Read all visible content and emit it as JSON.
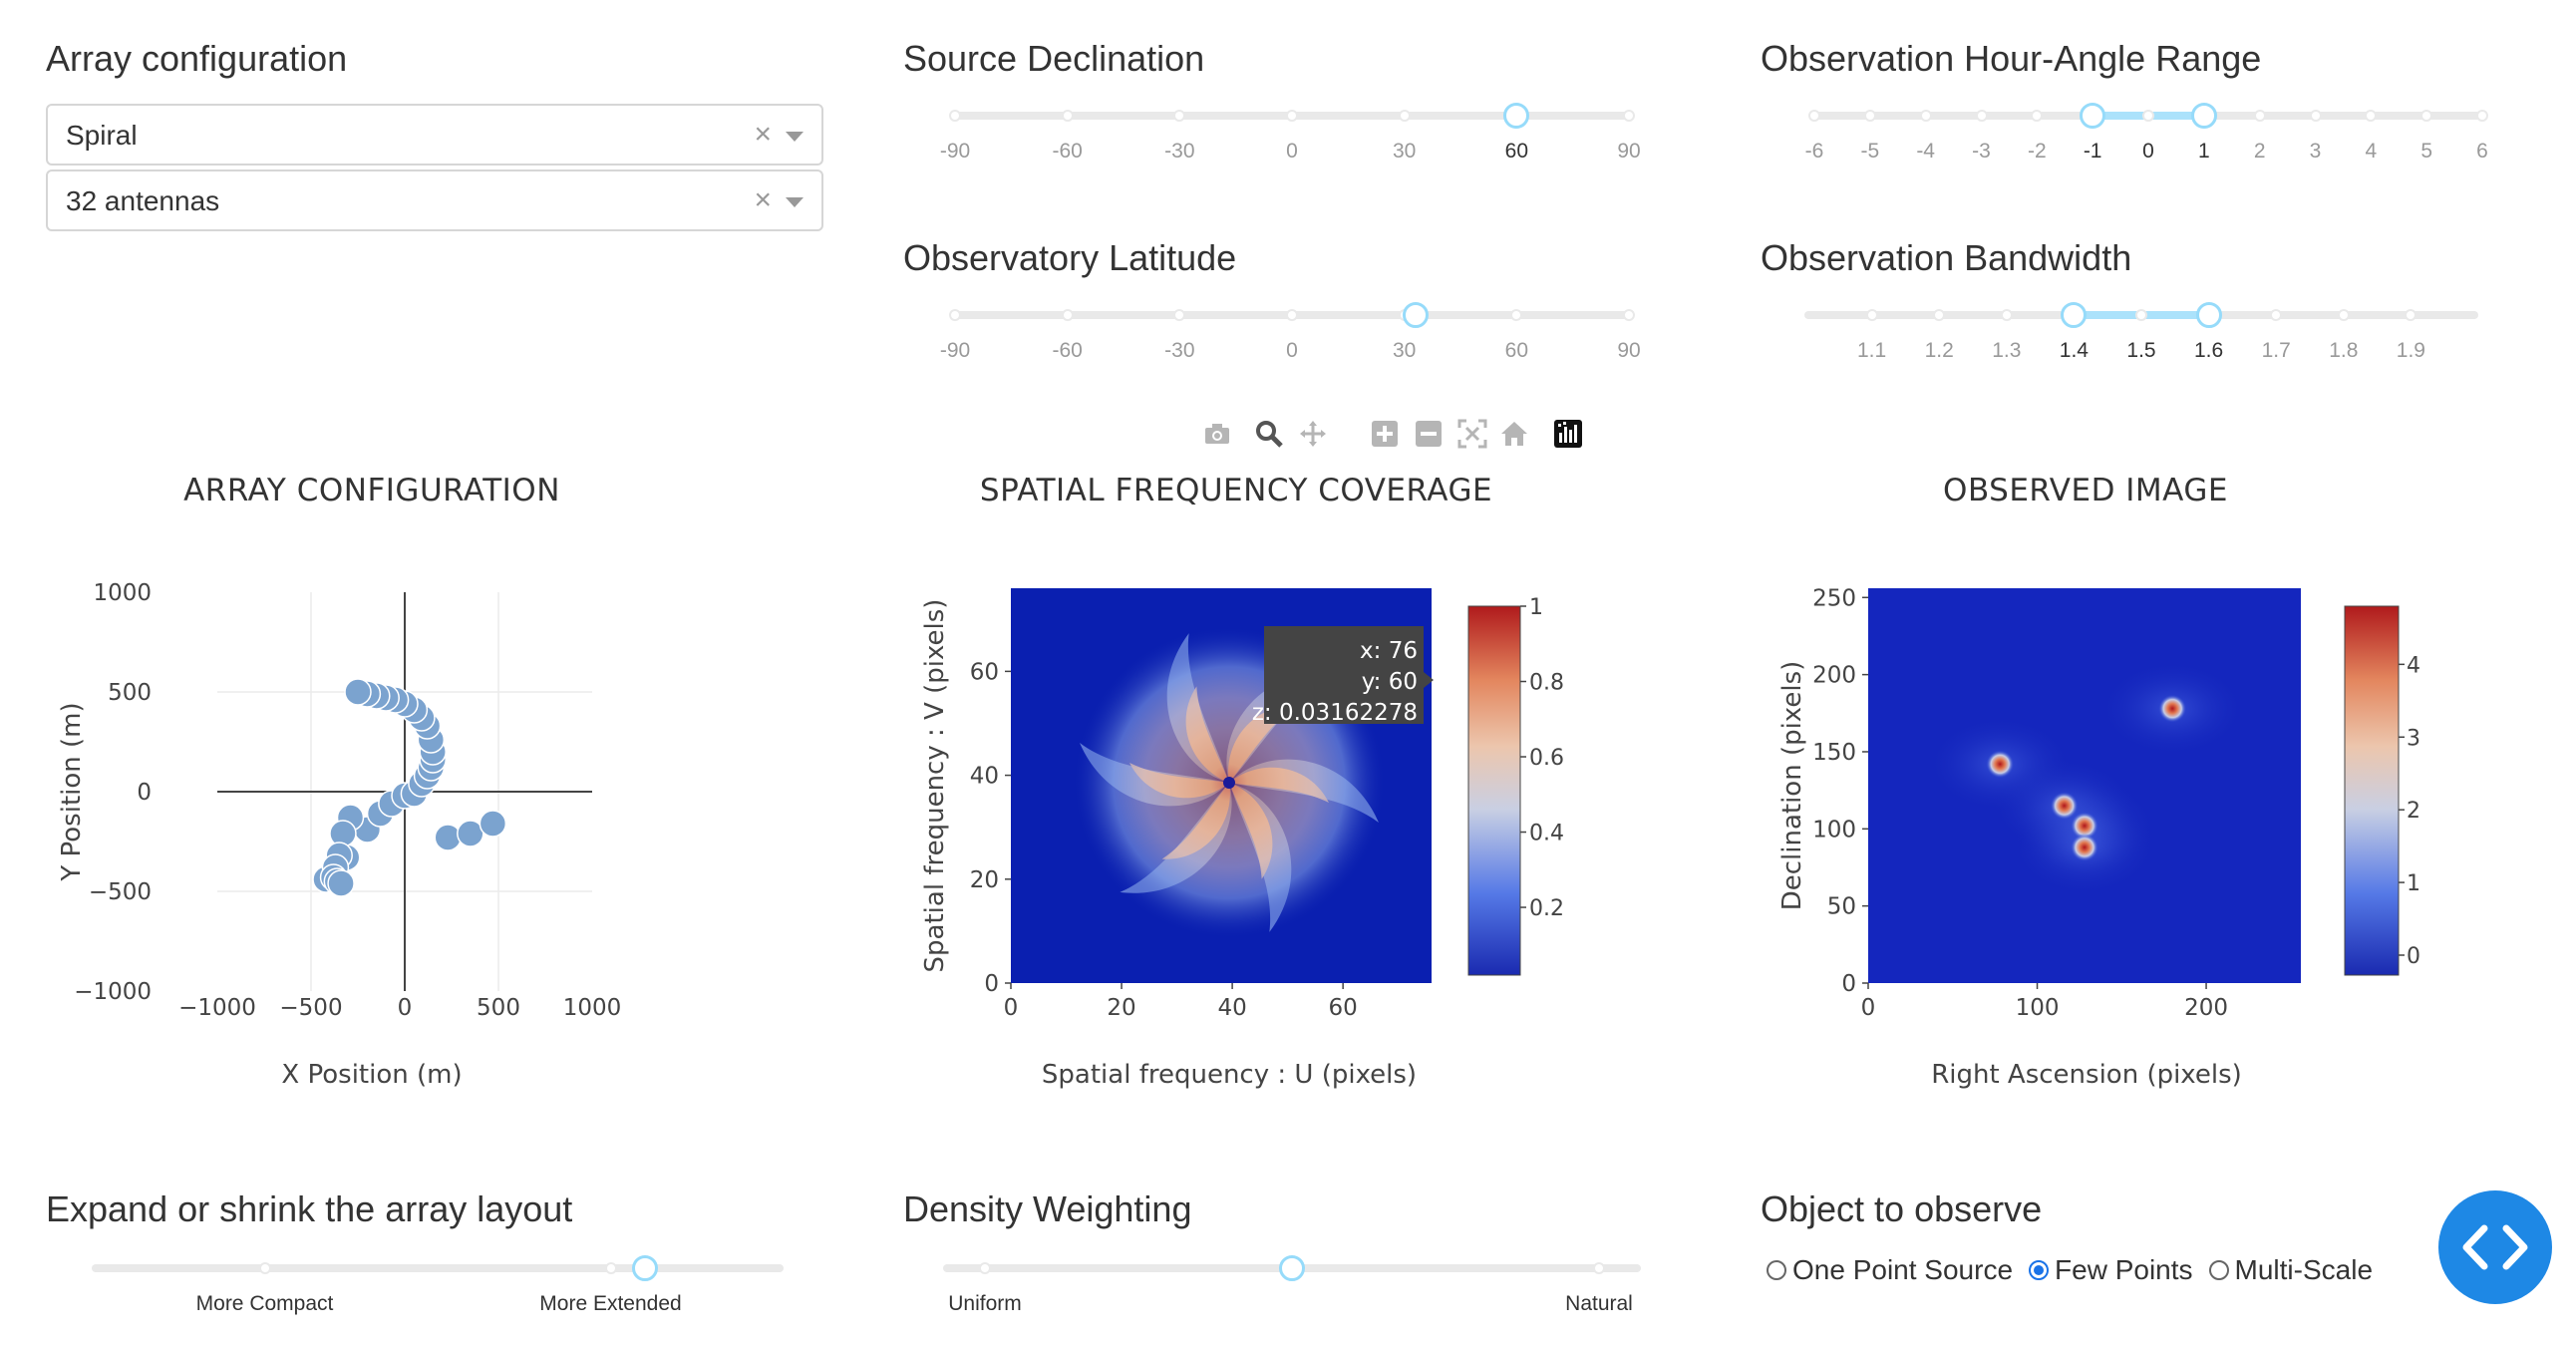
{
  "controls": {
    "array_configuration": {
      "title": "Array configuration",
      "layout_value": "Spiral",
      "antennas_value": "32 antennas"
    },
    "source_declination": {
      "title": "Source Declination",
      "marks": [
        "-90",
        "-60",
        "-30",
        "0",
        "30",
        "60",
        "90"
      ],
      "value": 60,
      "min": -90,
      "max": 90
    },
    "observatory_latitude": {
      "title": "Observatory Latitude",
      "marks": [
        "-90",
        "-60",
        "-30",
        "0",
        "30",
        "60",
        "90"
      ],
      "value": 33,
      "min": -90,
      "max": 90
    },
    "hour_angle_range": {
      "title": "Observation Hour-Angle Range",
      "marks": [
        "-6",
        "-5",
        "-4",
        "-3",
        "-2",
        "-1",
        "0",
        "1",
        "2",
        "3",
        "4",
        "5",
        "6"
      ],
      "low": -1,
      "high": 1,
      "min": -6,
      "max": 6
    },
    "bandwidth": {
      "title": "Observation Bandwidth",
      "marks": [
        "1.1",
        "1.2",
        "1.3",
        "1.4",
        "1.5",
        "1.6",
        "1.7",
        "1.8",
        "1.9"
      ],
      "low": 1.4,
      "high": 1.6,
      "min": 1.0,
      "max": 2.0
    },
    "expand_shrink": {
      "title": "Expand or shrink the array layout",
      "marks": [
        "More Compact",
        "More Extended"
      ],
      "value_fraction": 0.8
    },
    "density_weighting": {
      "title": "Density Weighting",
      "marks": [
        "Uniform",
        "Natural"
      ],
      "value_fraction": 0.5
    },
    "object_to_observe": {
      "title": "Object to observe",
      "options": [
        "One Point Source",
        "Few Points",
        "Multi-Scale"
      ],
      "selected": "Few Points"
    }
  },
  "modebar": {
    "icons": [
      "camera-icon",
      "zoom-icon",
      "pan-icon",
      "zoom-in-icon",
      "zoom-out-icon",
      "autoscale-icon",
      "reset-axes-icon",
      "plotly-logo-icon"
    ]
  },
  "chart_data": [
    {
      "type": "scatter",
      "title": "ARRAY CONFIGURATION",
      "xlabel": "X Position (m)",
      "ylabel": "Y Position (m)",
      "xlim": [
        -1000,
        1000
      ],
      "ylim": [
        -1000,
        1000
      ],
      "xticks": [
        "−1000",
        "−500",
        "0",
        "500",
        "1000"
      ],
      "yticks": [
        "1000",
        "500",
        "0",
        "−500",
        "−1000"
      ],
      "marker_color": "#7ba3cf",
      "x": [
        -420,
        -310,
        -200,
        -130,
        -70,
        0,
        50,
        90,
        120,
        140,
        150,
        150,
        140,
        120,
        90,
        50,
        0,
        -50,
        -100,
        -150,
        -200,
        -250,
        -290,
        -330,
        -350,
        -370,
        -380,
        -360,
        -340,
        230,
        350,
        470
      ],
      "y": [
        -440,
        -330,
        -190,
        -110,
        -60,
        -20,
        -10,
        40,
        80,
        120,
        160,
        200,
        260,
        330,
        370,
        410,
        440,
        460,
        470,
        480,
        490,
        500,
        -130,
        -210,
        -320,
        -380,
        -430,
        -450,
        -460,
        -230,
        -210,
        -160
      ]
    },
    {
      "type": "heatmap",
      "title": "SPATIAL FREQUENCY COVERAGE",
      "xlabel": "Spatial frequency : U (pixels)",
      "ylabel": "Spatial frequency : V (pixels)",
      "xticks": [
        "0",
        "20",
        "40",
        "60"
      ],
      "yticks": [
        "60",
        "40",
        "20",
        "0"
      ],
      "colorbar_ticks": [
        "1",
        "0.8",
        "0.6",
        "0.4",
        "0.2"
      ],
      "hover": {
        "x": "x: 76",
        "y": "y: 60",
        "z": "z: 0.03162278"
      }
    },
    {
      "type": "heatmap",
      "title": "OBSERVED IMAGE",
      "xlabel": "Right Ascension (pixels)",
      "ylabel": "Declination (pixels)",
      "xticks": [
        "0",
        "100",
        "200"
      ],
      "yticks": [
        "250",
        "200",
        "150",
        "100",
        "50",
        "0"
      ],
      "colorbar_ticks": [
        "4",
        "3",
        "2",
        "1",
        "0"
      ]
    }
  ]
}
